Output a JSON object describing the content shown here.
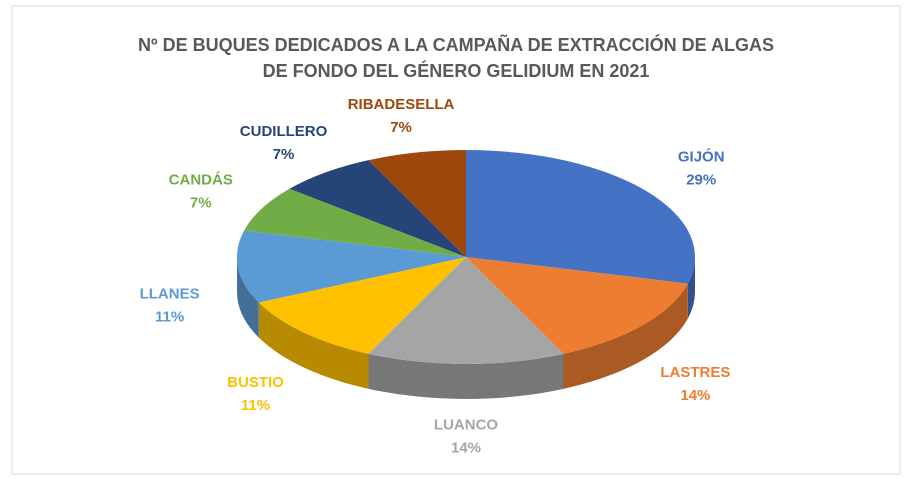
{
  "chart_data": {
    "type": "pie3d",
    "title": [
      "Nº DE BUQUES DEDICADOS A LA CAMPAÑA DE EXTRACCIÓN DE ALGAS",
      "DE FONDO DEL GÉNERO GELIDIUM EN 2021"
    ],
    "categories": [
      "GIJÓN",
      "LASTRES",
      "LUANCO",
      "BUSTIO",
      "LLANES",
      "CANDÁS",
      "CUDILLERO",
      "RIBADESELLA"
    ],
    "values": [
      29,
      14,
      14,
      11,
      11,
      7,
      7,
      7
    ],
    "value_labels": [
      "29%",
      "14%",
      "14%",
      "11%",
      "11%",
      "7%",
      "7%",
      "7%"
    ],
    "colors": [
      "#4472c4",
      "#ed7d31",
      "#a5a5a5",
      "#ffc000",
      "#5b9bd5",
      "#70ad47",
      "#264478",
      "#9e480e"
    ]
  }
}
